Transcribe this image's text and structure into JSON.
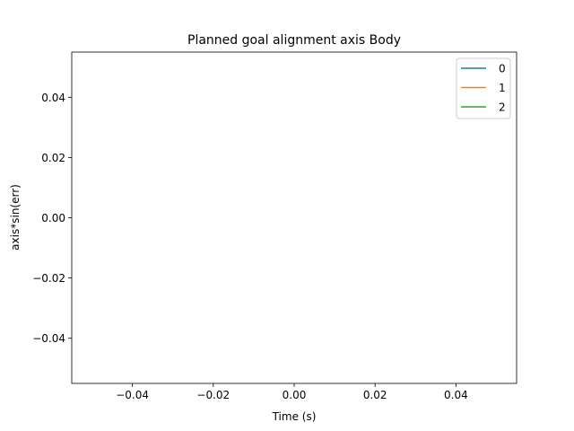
{
  "chart_data": {
    "type": "line",
    "title": "Planned goal alignment axis Body",
    "xlabel": "Time (s)",
    "ylabel": "axis*sin(err)",
    "xlim": [
      -0.055,
      0.055
    ],
    "ylim": [
      -0.055,
      0.055
    ],
    "x_ticks": [
      -0.04,
      -0.02,
      0.0,
      0.02,
      0.04
    ],
    "x_tick_labels": [
      "−0.04",
      "−0.02",
      "0.00",
      "0.02",
      "0.04"
    ],
    "y_ticks": [
      0.04,
      0.02,
      0.0,
      -0.02,
      -0.04
    ],
    "y_tick_labels": [
      "0.04",
      "0.02",
      "0.00",
      "−0.02",
      "−0.04"
    ],
    "grid": false,
    "legend_position": "top-right",
    "series": [
      {
        "name": "0",
        "color": "#1f77b4",
        "x": [],
        "y": []
      },
      {
        "name": "1",
        "color": "#ff7f0e",
        "x": [],
        "y": []
      },
      {
        "name": "2",
        "color": "#2ca02c",
        "x": [],
        "y": []
      }
    ]
  }
}
